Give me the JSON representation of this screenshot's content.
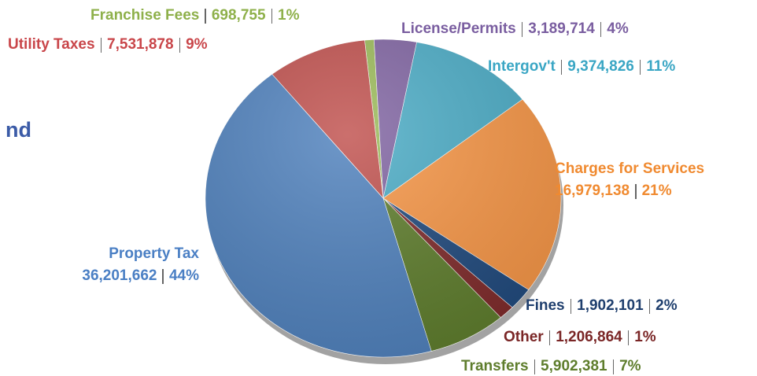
{
  "chart_data": {
    "type": "pie",
    "title": "nd",
    "categories": [
      "Franchise Fees",
      "License/Permits",
      "Intergov't",
      "Charges for Services",
      "Fines",
      "Other",
      "Transfers",
      "Property Tax",
      "Utility Taxes"
    ],
    "values": [
      698755,
      3189714,
      9374826,
      16979138,
      1902101,
      1206864,
      5902381,
      36201662,
      7531878
    ],
    "value_labels": [
      "698,755",
      "3,189,714",
      "9,374,826",
      "16,979,138",
      "1,902,101",
      "1,206,864",
      "5,902,381",
      "36,201,662",
      "7,531,878"
    ],
    "percents": [
      1,
      4,
      11,
      21,
      2,
      1,
      7,
      44,
      9
    ],
    "percent_labels": [
      "1%",
      "4%",
      "11%",
      "21%",
      "2%",
      "1%",
      "7%",
      "44%",
      "9%"
    ],
    "colors": [
      "#9bbb59",
      "#8064a2",
      "#4bacc6",
      "#f79646",
      "#1f497d",
      "#7f2a2a",
      "#5e7d2c",
      "#4f81bd",
      "#c0504d"
    ],
    "label_colors": [
      "#8eb04a",
      "#7a5ea0",
      "#3aa6c4",
      "#f08a30",
      "#1f3f6e",
      "#7a2626",
      "#5e7d2c",
      "#4a7fc4",
      "#c9464a"
    ]
  }
}
